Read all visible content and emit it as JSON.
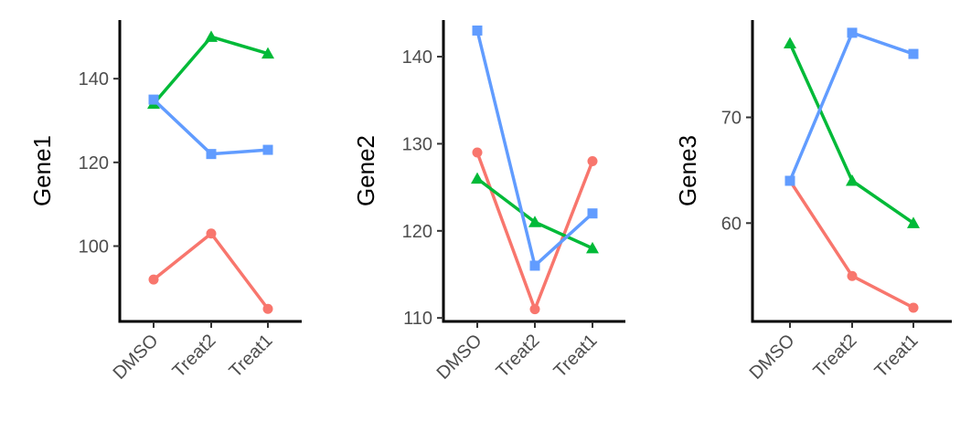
{
  "chart_data": [
    {
      "type": "line",
      "ylabel": "Gene1",
      "xlabel": "",
      "categories": [
        "DMSO",
        "Treat2",
        "Treat1"
      ],
      "ylim": [
        82,
        154
      ],
      "yticks": [
        100,
        120,
        140
      ],
      "grid": false,
      "legend": "none",
      "series": [
        {
          "color": "#F8766D",
          "marker": "circle",
          "values": [
            92,
            103,
            85
          ]
        },
        {
          "color": "#00BA38",
          "marker": "triangle",
          "values": [
            134,
            150,
            146
          ]
        },
        {
          "color": "#619CFF",
          "marker": "square",
          "values": [
            135,
            122,
            123
          ]
        }
      ]
    },
    {
      "type": "line",
      "ylabel": "Gene2",
      "xlabel": "",
      "categories": [
        "DMSO",
        "Treat2",
        "Treat1"
      ],
      "ylim": [
        109.6,
        144.2
      ],
      "yticks": [
        110,
        120,
        130,
        140
      ],
      "grid": false,
      "legend": "none",
      "series": [
        {
          "color": "#F8766D",
          "marker": "circle",
          "values": [
            129,
            111,
            128
          ]
        },
        {
          "color": "#00BA38",
          "marker": "triangle",
          "values": [
            126,
            121,
            118
          ]
        },
        {
          "color": "#619CFF",
          "marker": "square",
          "values": [
            143,
            116,
            122
          ]
        }
      ]
    },
    {
      "type": "line",
      "ylabel": "Gene3",
      "xlabel": "",
      "categories": [
        "DMSO",
        "Treat2",
        "Treat1"
      ],
      "ylim": [
        50.7,
        79.2
      ],
      "yticks": [
        60,
        70
      ],
      "grid": false,
      "legend": "none",
      "series": [
        {
          "color": "#F8766D",
          "marker": "circle",
          "values": [
            64,
            55,
            52
          ]
        },
        {
          "color": "#00BA38",
          "marker": "triangle",
          "values": [
            77,
            64,
            60
          ]
        },
        {
          "color": "#619CFF",
          "marker": "square",
          "values": [
            64,
            78,
            76
          ]
        }
      ]
    }
  ]
}
